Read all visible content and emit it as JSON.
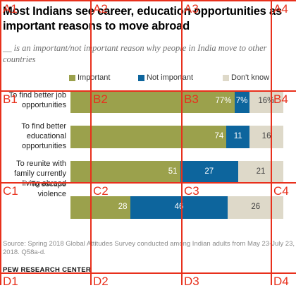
{
  "chart_title": "Most Indians see career, education opportunities as important reasons to move abroad",
  "subtitle": "__ is an important/not important reason why people in India move to other countries",
  "source": "Source: Spring 2018 Global Attitudes Survey conducted among Indian adults from May 23-July 23, 2018. Q58a-d.",
  "brand": "PEW RESEARCH CENTER",
  "grid_labels": [
    "A1",
    "A2",
    "A3",
    "A4",
    "B1",
    "B2",
    "B3",
    "B4",
    "C1",
    "C2",
    "C3",
    "C4",
    "D1",
    "D2",
    "D3",
    "D4"
  ],
  "colors": {
    "important": "#9ba14c",
    "not_important": "#0d659d",
    "dont_know": "#ded9c9",
    "grid": "#e8301c"
  },
  "chart_data": {
    "type": "bar",
    "orientation": "horizontal-stacked",
    "title": "Most Indians see career, education opportunities as important reasons to move abroad",
    "categories": [
      "To find better job opportunities",
      "To find better educational opportunities",
      "To reunite with family currently living abroad",
      "To escape violence"
    ],
    "series": [
      {
        "name": "Important",
        "values": [
          77,
          74,
          51,
          28
        ],
        "labels": [
          "77%",
          "74",
          "51",
          "28"
        ]
      },
      {
        "name": "Not important",
        "values": [
          7,
          11,
          27,
          46
        ],
        "labels": [
          "7%",
          "11",
          "27",
          "46"
        ]
      },
      {
        "name": "Don't know",
        "values": [
          16,
          16,
          21,
          26
        ],
        "labels": [
          "16%",
          "16",
          "21",
          "26"
        ]
      }
    ],
    "xlim": [
      0,
      100
    ],
    "legend": "top",
    "grid": false
  }
}
